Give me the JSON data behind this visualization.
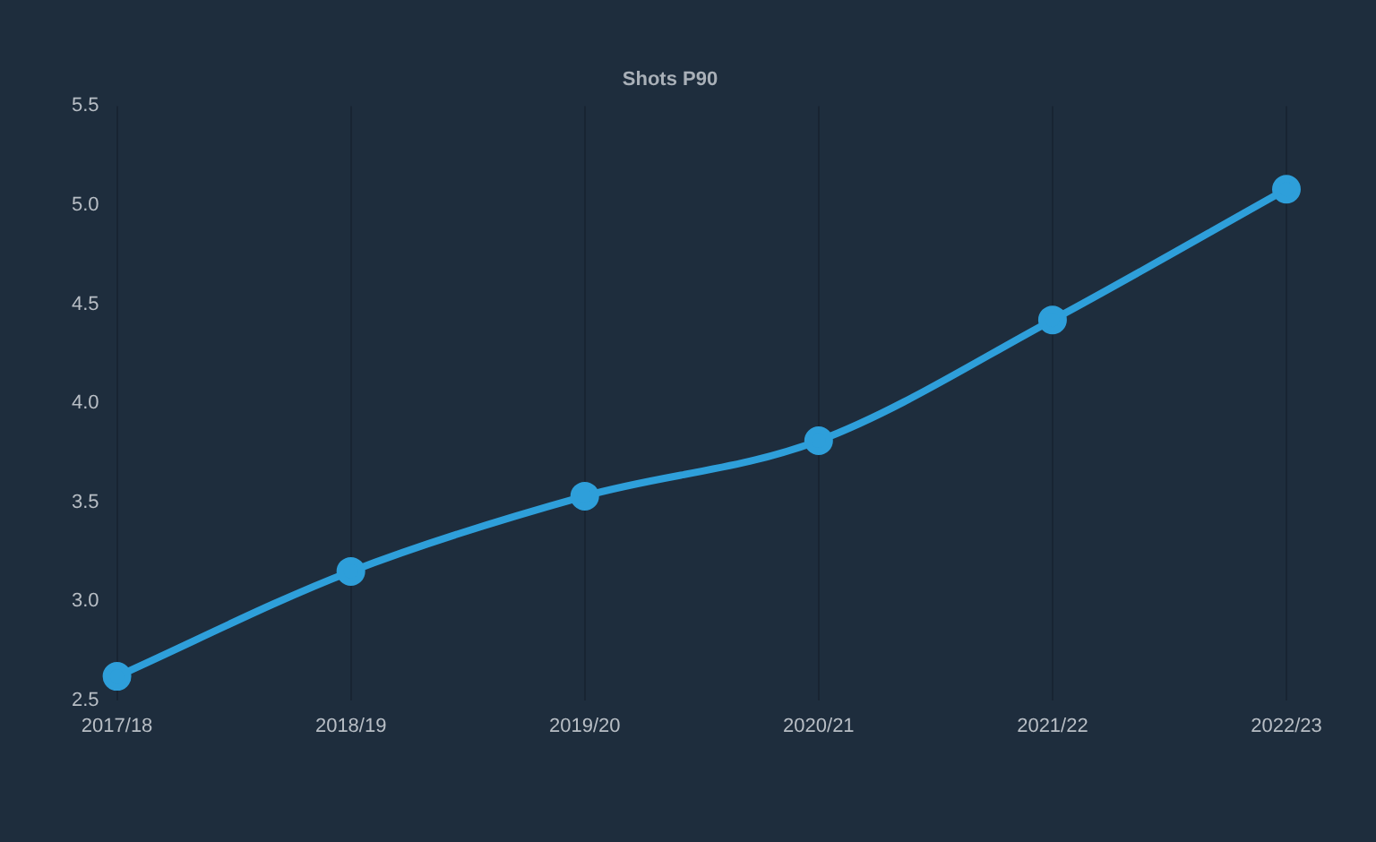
{
  "chart_data": {
    "type": "line",
    "title": "Shots P90",
    "categories": [
      "2017/18",
      "2018/19",
      "2019/20",
      "2020/21",
      "2021/22",
      "2022/23"
    ],
    "series": [
      {
        "color": "#2e9fda",
        "values": [
          2.62,
          3.15,
          3.53,
          3.81,
          4.42,
          5.08
        ]
      }
    ],
    "ylim": [
      2.5,
      5.5
    ],
    "yticks": [
      {
        "value": 2.5,
        "label": "2.5"
      },
      {
        "value": 3,
        "label": "3.0"
      },
      {
        "value": 3.5,
        "label": "3.5"
      },
      {
        "value": 4,
        "label": "4.0"
      },
      {
        "value": 4.5,
        "label": "4.5"
      },
      {
        "value": 5,
        "label": "5.0"
      },
      {
        "value": 5.5,
        "label": "5.5"
      }
    ],
    "grid": "x",
    "legend": false,
    "marker": "circle",
    "line_style": "solid"
  }
}
